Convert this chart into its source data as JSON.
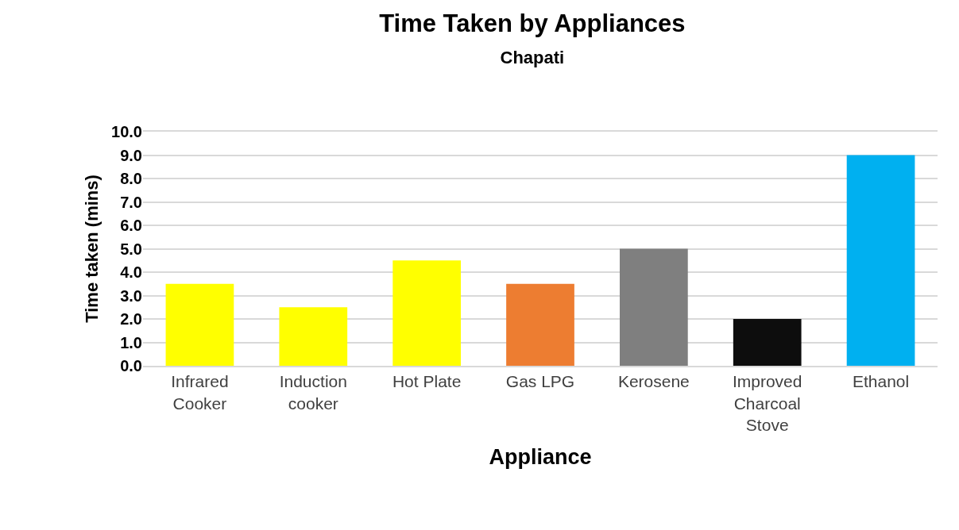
{
  "chart_data": {
    "type": "bar",
    "title": "Time Taken by Appliances",
    "subtitle": "Chapati",
    "xlabel": "Appliance",
    "ylabel": "Time taken (mins)",
    "categories": [
      "Infrared Cooker",
      "Induction cooker",
      "Hot Plate",
      "Gas LPG",
      "Kerosene",
      "Improved Charcoal Stove",
      "Ethanol"
    ],
    "values": [
      3.5,
      2.5,
      4.5,
      3.5,
      5.0,
      2.0,
      9.0
    ],
    "colors": [
      "#ffff00",
      "#ffff00",
      "#ffff00",
      "#ed7d31",
      "#7f7f7f",
      "#0d0d0d",
      "#00b0f0"
    ],
    "ylim": [
      0,
      10
    ],
    "yticks": [
      {
        "value": 0,
        "label": "0.0"
      },
      {
        "value": 1,
        "label": "1.0"
      },
      {
        "value": 2,
        "label": "2.0"
      },
      {
        "value": 3,
        "label": "3.0"
      },
      {
        "value": 4,
        "label": "4.0"
      },
      {
        "value": 5,
        "label": "5.0"
      },
      {
        "value": 6,
        "label": "6.0"
      },
      {
        "value": 7,
        "label": "7.0"
      },
      {
        "value": 8,
        "label": "8.0"
      },
      {
        "value": 9,
        "label": "9.0"
      },
      {
        "value": 10,
        "label": "10.0"
      }
    ],
    "grid": "y"
  }
}
